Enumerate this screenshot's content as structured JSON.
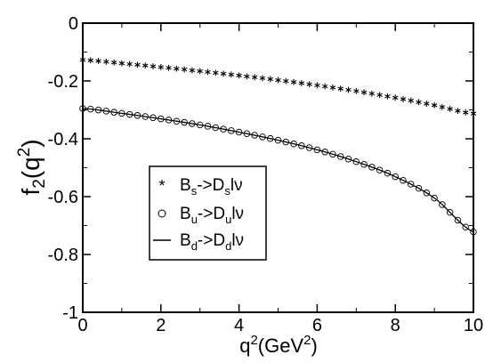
{
  "chart_data": {
    "type": "scatter",
    "xlabel": {
      "base": "q",
      "sup": "2",
      "tail": "(GeV",
      "sup2": "2",
      "close": ")"
    },
    "ylabel": {
      "base": "f",
      "sub": "2",
      "open": "(q",
      "sup": "2",
      "close": ")"
    },
    "xlim": [
      0,
      10
    ],
    "ylim": [
      -1,
      0
    ],
    "xticks": [
      0,
      2,
      4,
      6,
      8,
      10
    ],
    "yticks": [
      0,
      -0.2,
      -0.4,
      -0.6,
      -0.8,
      -1
    ],
    "xtick_labels": [
      "0",
      "2",
      "4",
      "6",
      "8",
      "10"
    ],
    "ytick_labels": [
      "0",
      "-0.2",
      "-0.4",
      "-0.6",
      "-0.8",
      "-1"
    ],
    "grid": false,
    "legend_position": "middle-left",
    "series": [
      {
        "name": "Bs->Dslν",
        "marker": "star",
        "legend": {
          "b": "B",
          "bsub": "s",
          "mid": "->D",
          "dsub": "s",
          "end": "lν"
        },
        "x": [
          0,
          1,
          2,
          3,
          4,
          5,
          6,
          7,
          8,
          9,
          10
        ],
        "y": [
          -0.127,
          -0.139,
          -0.152,
          -0.166,
          -0.181,
          -0.197,
          -0.215,
          -0.235,
          -0.258,
          -0.284,
          -0.313
        ]
      },
      {
        "name": "Bu->Dulν",
        "marker": "circle",
        "legend": {
          "b": "B",
          "bsub": "u",
          "mid": "->D",
          "dsub": "u",
          "end": "lν"
        },
        "x": [
          0,
          1,
          2,
          3,
          4,
          5,
          6,
          7,
          8,
          9,
          10
        ],
        "y": [
          -0.295,
          -0.312,
          -0.331,
          -0.352,
          -0.377,
          -0.405,
          -0.438,
          -0.479,
          -0.531,
          -0.605,
          -0.722
        ]
      },
      {
        "name": "Bd->Ddlν",
        "marker": "line",
        "legend": {
          "b": "B",
          "bsub": "d",
          "mid": "->D",
          "dsub": "d",
          "end": "lν"
        },
        "x": [
          0,
          1,
          2,
          3,
          4,
          5,
          6,
          7,
          8,
          9,
          10
        ],
        "y": [
          -0.295,
          -0.312,
          -0.331,
          -0.352,
          -0.377,
          -0.405,
          -0.438,
          -0.479,
          -0.531,
          -0.605,
          -0.722
        ]
      }
    ]
  }
}
